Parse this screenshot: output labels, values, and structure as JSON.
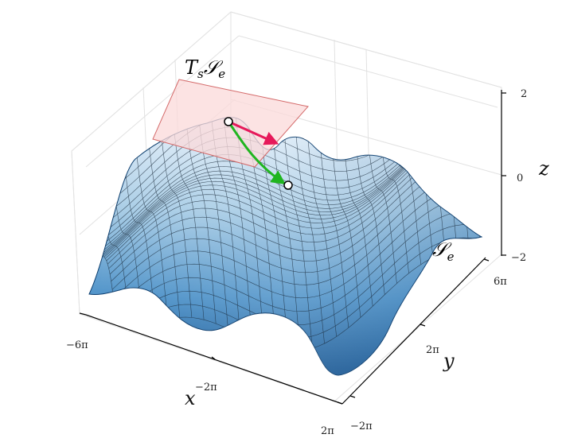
{
  "figure": {
    "tangent_plane_label": "T",
    "tangent_plane_sub": "s",
    "tangent_plane_script": "𝒮",
    "tangent_plane_script_sub": "e",
    "surface_label": "𝒮",
    "surface_label_sub": "e",
    "colors": {
      "surface_dark": "#0b4f8f",
      "surface_light": "#dbe9f6",
      "tangent_plane_fill": "#fbdada",
      "tangent_plane_edge": "#d46a6a",
      "tangent_arrow": "#e6195a",
      "geodesic_arrow": "#1fb51f",
      "grid": "#e2e2e2"
    }
  },
  "chart_data": {
    "type": "surface3d",
    "title": "",
    "xlabel": "x",
    "ylabel": "y",
    "zlabel": "z",
    "x_ticks": [
      "−6π",
      "−2π",
      "2π"
    ],
    "y_ticks": [
      "−2π",
      "2π",
      "6π"
    ],
    "z_ticks": [
      "−2",
      "0",
      "2"
    ],
    "xlim": [
      "−6π",
      "2π"
    ],
    "ylim": [
      "−2π",
      "6π"
    ],
    "zlim": [
      -2,
      2
    ],
    "surface": "sinusoidal surface (peaks and valleys)",
    "points": [
      {
        "name": "s",
        "role": "start point on surface",
        "vector": "tangent"
      },
      {
        "name": "e",
        "role": "end point on surface",
        "vector": "geodesic"
      }
    ]
  }
}
